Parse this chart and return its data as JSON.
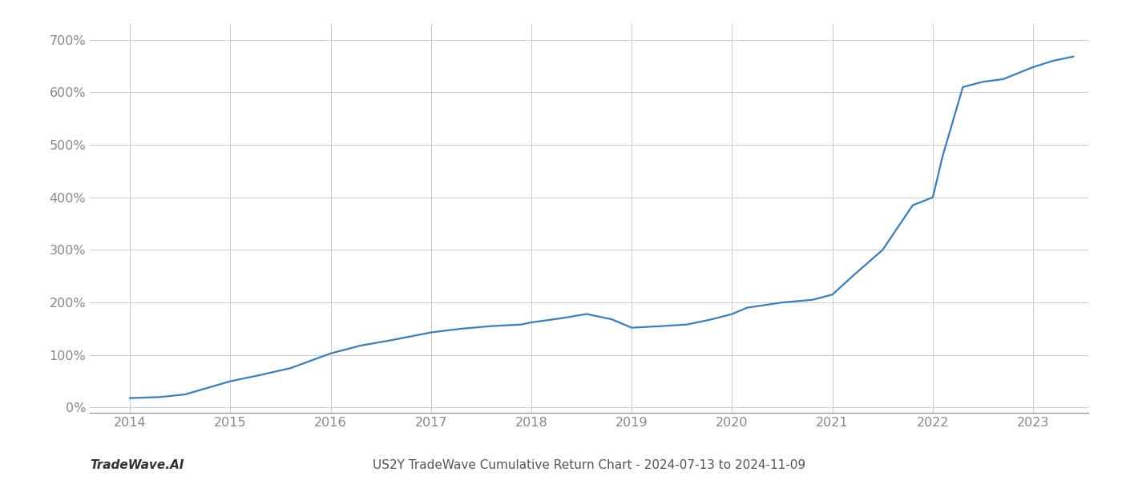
{
  "title": "US2Y TradeWave Cumulative Return Chart - 2024-07-13 to 2024-11-09",
  "watermark": "TradeWave.AI",
  "line_color": "#3a7ebf",
  "background_color": "#ffffff",
  "grid_color": "#cccccc",
  "x_values": [
    2014.0,
    2014.3,
    2014.55,
    2015.0,
    2015.3,
    2015.6,
    2016.0,
    2016.3,
    2016.6,
    2017.0,
    2017.3,
    2017.6,
    2017.9,
    2018.0,
    2018.3,
    2018.55,
    2018.8,
    2019.0,
    2019.3,
    2019.55,
    2019.8,
    2020.0,
    2020.15,
    2020.5,
    2020.8,
    2021.0,
    2021.2,
    2021.5,
    2021.8,
    2022.0,
    2022.1,
    2022.3,
    2022.5,
    2022.7,
    2023.0,
    2023.2,
    2023.4
  ],
  "y_values": [
    18,
    20,
    25,
    50,
    62,
    75,
    103,
    118,
    128,
    143,
    150,
    155,
    158,
    162,
    170,
    178,
    168,
    152,
    155,
    158,
    168,
    178,
    190,
    200,
    205,
    215,
    250,
    300,
    385,
    400,
    480,
    610,
    620,
    625,
    648,
    660,
    668
  ],
  "xlim": [
    2013.6,
    2023.55
  ],
  "ylim": [
    -10,
    730
  ],
  "yticks": [
    0,
    100,
    200,
    300,
    400,
    500,
    600,
    700
  ],
  "xticks": [
    2014,
    2015,
    2016,
    2017,
    2018,
    2019,
    2020,
    2021,
    2022,
    2023
  ],
  "line_width": 1.6,
  "title_fontsize": 11,
  "tick_fontsize": 11.5,
  "watermark_fontsize": 11,
  "spine_bottom_color": "#999999"
}
